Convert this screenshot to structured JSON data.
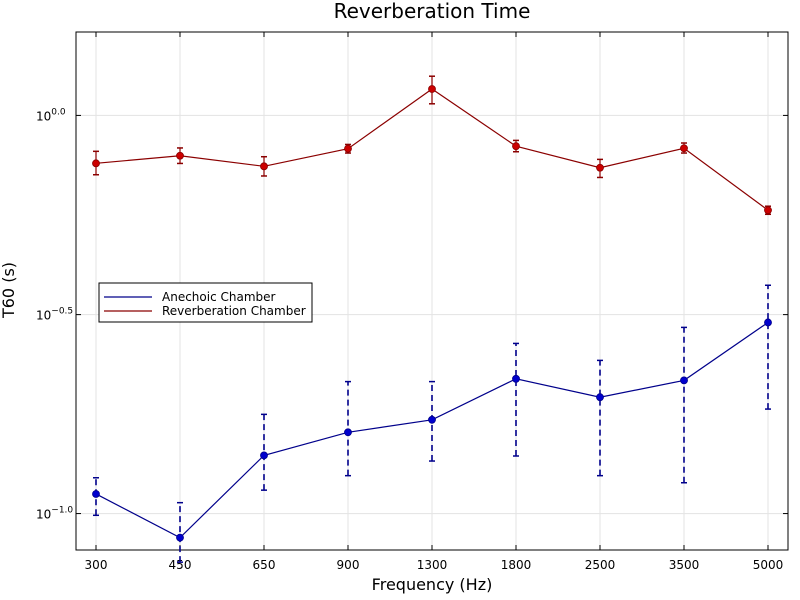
{
  "chart_data": {
    "type": "line",
    "title": "Reverberation Time",
    "xlabel": "Frequency (Hz)",
    "ylabel": "T60 (s)",
    "categories": [
      "300",
      "450",
      "650",
      "900",
      "1300",
      "1800",
      "2500",
      "3500",
      "5000"
    ],
    "y_scale": "log10",
    "ylim": [
      0.081,
      1.62
    ],
    "yticks": [
      {
        "value": 0.1,
        "base": "10",
        "exp": "−1.0"
      },
      {
        "value": 0.316,
        "base": "10",
        "exp": "−0.5"
      },
      {
        "value": 1.0,
        "base": "10",
        "exp": "0.0"
      }
    ],
    "grid": true,
    "legend_position": "left",
    "series": [
      {
        "name": "Anechoic Chamber",
        "color": "#00008b",
        "marker_color": "#0000cd",
        "dashed_errorbars": true,
        "values": [
          0.112,
          0.087,
          0.14,
          0.16,
          0.172,
          0.218,
          0.196,
          0.216,
          0.302
        ],
        "err_low": [
          0.099,
          0.0755,
          0.1145,
          0.1245,
          0.1355,
          0.1395,
          0.1245,
          0.1195,
          0.183
        ],
        "err_high": [
          0.123,
          0.1065,
          0.1775,
          0.2145,
          0.2145,
          0.2675,
          0.2425,
          0.2935,
          0.3745
        ]
      },
      {
        "name": "Reverberation Chamber",
        "color": "#8b0000",
        "marker_color": "#cc0000",
        "dashed_errorbars": false,
        "values": [
          0.758,
          0.792,
          0.745,
          0.825,
          1.165,
          0.837,
          0.739,
          0.827,
          0.578
        ],
        "err_low": [
          0.7095,
          0.7575,
          0.7045,
          0.8045,
          1.0695,
          0.8105,
          0.6985,
          0.8045,
          0.5645
        ],
        "err_high": [
          0.8125,
          0.8285,
          0.7875,
          0.8455,
          1.2545,
          0.8655,
          0.7755,
          0.8525,
          0.5915
        ]
      }
    ]
  }
}
